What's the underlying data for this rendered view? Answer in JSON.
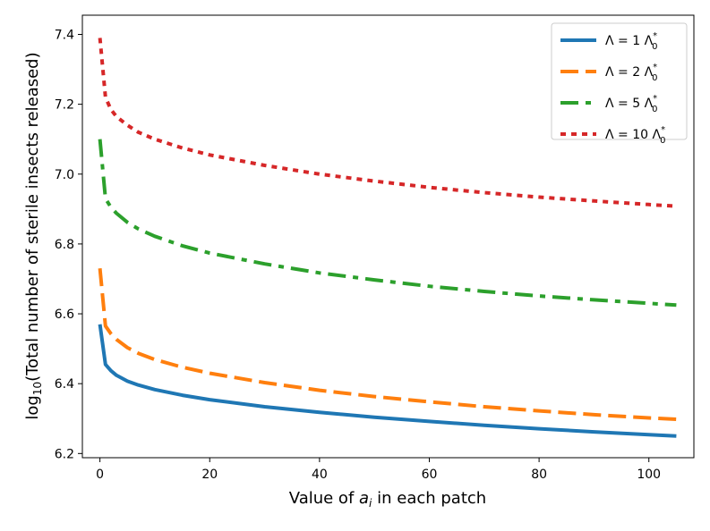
{
  "chart_data": {
    "type": "line",
    "title": "",
    "xlabel_parts": [
      "Value of ",
      "a",
      "i",
      " in each patch"
    ],
    "ylabel_parts": [
      "log",
      "10",
      "(Total number of sterile insects released)"
    ],
    "xlim": [
      -3.2,
      108.2
    ],
    "ylim": [
      6.188,
      7.455
    ],
    "xticks": [
      0,
      20,
      40,
      60,
      80,
      100
    ],
    "yticks": [
      6.2,
      6.4,
      6.6,
      6.8,
      7.0,
      7.2,
      7.4
    ],
    "xtick_labels": [
      "0",
      "20",
      "40",
      "60",
      "80",
      "100"
    ],
    "ytick_labels": [
      "6.2",
      "6.4",
      "6.6",
      "6.8",
      "7.0",
      "7.2",
      "7.4"
    ],
    "grid": false,
    "legend_position": "upper-right",
    "series": [
      {
        "name_parts": [
          "Λ = 1 Λ",
          "0",
          "*"
        ],
        "color": "#1f77b4",
        "style": "solid",
        "x": [
          0,
          1,
          2,
          3,
          5,
          7,
          10,
          15,
          20,
          30,
          40,
          50,
          60,
          70,
          80,
          90,
          100,
          105
        ],
        "y": [
          6.57,
          6.455,
          6.437,
          6.424,
          6.407,
          6.396,
          6.383,
          6.367,
          6.354,
          6.334,
          6.318,
          6.304,
          6.292,
          6.281,
          6.271,
          6.262,
          6.254,
          6.25
        ]
      },
      {
        "name_parts": [
          "Λ = 2 Λ",
          "0",
          "*"
        ],
        "color": "#ff7f0e",
        "style": "dashed",
        "x": [
          0,
          1,
          2,
          3,
          5,
          7,
          10,
          15,
          20,
          30,
          40,
          50,
          60,
          70,
          80,
          90,
          100,
          105
        ],
        "y": [
          6.73,
          6.565,
          6.543,
          6.527,
          6.503,
          6.487,
          6.469,
          6.447,
          6.43,
          6.403,
          6.381,
          6.363,
          6.348,
          6.334,
          6.322,
          6.311,
          6.302,
          6.298
        ]
      },
      {
        "name_parts": [
          "Λ = 5 Λ",
          "0",
          "*"
        ],
        "color": "#2ca02c",
        "style": "dashdot",
        "x": [
          0,
          1,
          2,
          3,
          5,
          7,
          10,
          15,
          20,
          30,
          40,
          50,
          60,
          70,
          80,
          90,
          100,
          105
        ],
        "y": [
          7.1,
          6.93,
          6.905,
          6.888,
          6.862,
          6.843,
          6.822,
          6.795,
          6.774,
          6.743,
          6.717,
          6.697,
          6.679,
          6.664,
          6.651,
          6.64,
          6.63,
          6.625
        ]
      },
      {
        "name_parts": [
          "Λ = 10 Λ",
          "0",
          "*"
        ],
        "color": "#d62728",
        "style": "dotted",
        "x": [
          0,
          1,
          2,
          3,
          5,
          7,
          10,
          15,
          20,
          30,
          40,
          50,
          60,
          70,
          80,
          90,
          100,
          105
        ],
        "y": [
          7.39,
          7.22,
          7.185,
          7.165,
          7.14,
          7.12,
          7.1,
          7.075,
          7.055,
          7.025,
          7.0,
          6.98,
          6.962,
          6.947,
          6.934,
          6.923,
          6.913,
          6.908
        ]
      }
    ]
  }
}
